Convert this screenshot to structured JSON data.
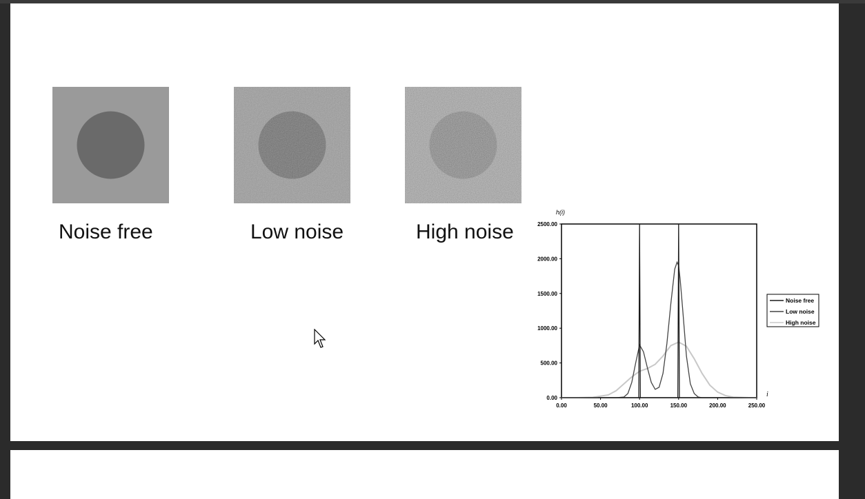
{
  "slide": {
    "images": [
      {
        "caption": "Noise free",
        "noise": "none",
        "bg": "#9a9a9a",
        "disk": "#6a6a6a"
      },
      {
        "caption": "Low noise",
        "noise": "low",
        "bg": "#9a9a9a",
        "disk": "#676767"
      },
      {
        "caption": "High noise",
        "noise": "high",
        "bg": "#9a9a9a",
        "disk": "#636363"
      }
    ]
  },
  "chart_data": {
    "type": "line",
    "ylabel": "h(i)",
    "xlabel": "i",
    "xlim": [
      0,
      250
    ],
    "ylim": [
      0,
      2500
    ],
    "xticks": [
      "0.00",
      "50.00",
      "100.00",
      "150.00",
      "200.00",
      "250.00"
    ],
    "yticks": [
      "0.00",
      "500.00",
      "1000.00",
      "1500.00",
      "2000.00",
      "2500.00"
    ],
    "legend_position": "right",
    "grid": false,
    "series": [
      {
        "name": "Noise free",
        "color": "#1a1a1a",
        "x": [
          0,
          99,
          100,
          100,
          101,
          149,
          150,
          150,
          151,
          250
        ],
        "y": [
          0,
          0,
          2500,
          2500,
          0,
          0,
          2500,
          2500,
          0,
          0
        ]
      },
      {
        "name": "Low noise",
        "color": "#444444",
        "x": [
          0,
          70,
          80,
          85,
          90,
          95,
          100,
          105,
          110,
          115,
          120,
          125,
          130,
          135,
          140,
          145,
          148,
          150,
          152,
          155,
          160,
          165,
          170,
          175,
          180,
          250
        ],
        "y": [
          0,
          0,
          10,
          60,
          220,
          500,
          760,
          660,
          430,
          220,
          120,
          150,
          350,
          780,
          1350,
          1850,
          1950,
          1900,
          1700,
          1300,
          600,
          200,
          60,
          10,
          0,
          0
        ]
      },
      {
        "name": "High noise",
        "color": "#c8c8c8",
        "x": [
          0,
          20,
          40,
          60,
          70,
          80,
          90,
          100,
          110,
          120,
          130,
          140,
          150,
          160,
          170,
          180,
          190,
          200,
          210,
          220,
          240,
          250
        ],
        "y": [
          0,
          0,
          5,
          40,
          100,
          200,
          300,
          380,
          420,
          480,
          600,
          750,
          800,
          740,
          560,
          350,
          180,
          80,
          30,
          8,
          0,
          0
        ]
      }
    ]
  }
}
